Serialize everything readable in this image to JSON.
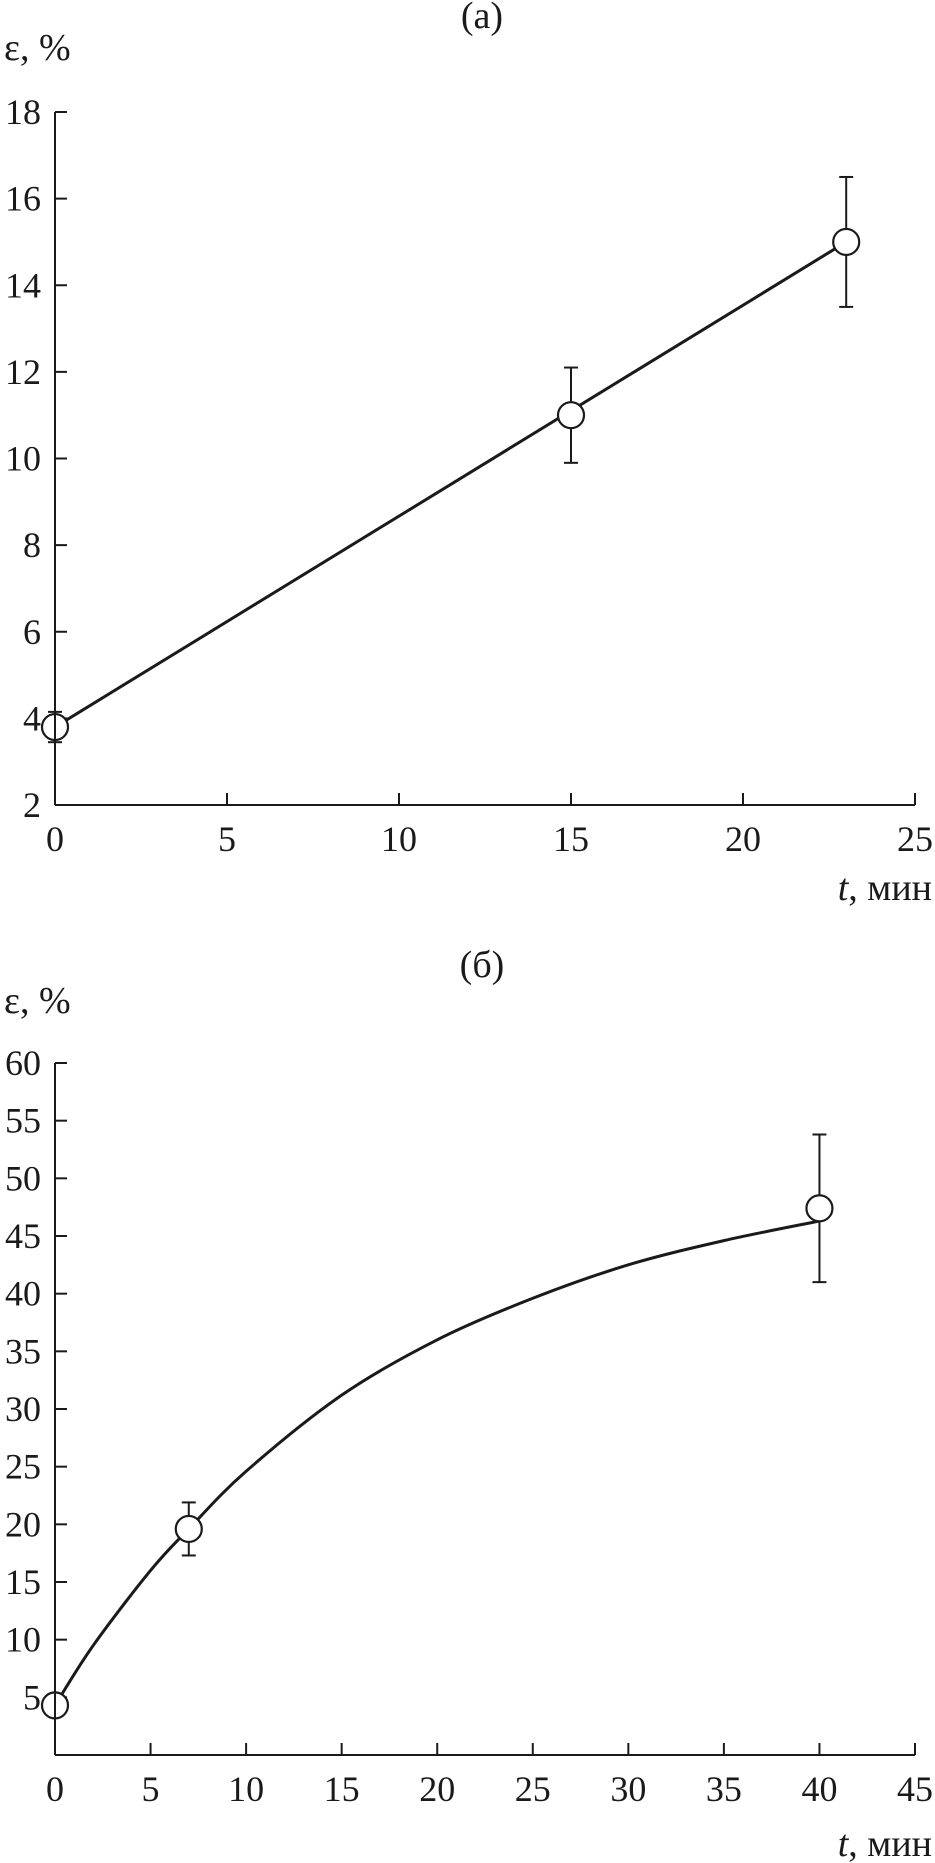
{
  "chart_data": [
    {
      "type": "scatter",
      "panel_label": "(а)",
      "ylabel": "ε, %",
      "xlabel_italic": "t",
      "xlabel_rest": ", мин",
      "xlim": [
        0,
        25
      ],
      "ylim": [
        2,
        18
      ],
      "x_ticks": [
        0,
        5,
        10,
        15,
        20,
        25
      ],
      "y_ticks": [
        2,
        4,
        6,
        8,
        10,
        12,
        14,
        16,
        18
      ],
      "grid": false,
      "series": [
        {
          "x": [
            0,
            15,
            23
          ],
          "y": [
            3.8,
            11.0,
            15.0
          ],
          "err": [
            0.35,
            1.1,
            1.5
          ],
          "marker": "open-circle"
        }
      ],
      "fit": {
        "kind": "linear",
        "x": [
          0,
          23
        ],
        "y": [
          3.8,
          15.0
        ]
      }
    },
    {
      "type": "scatter",
      "panel_label": "(б)",
      "ylabel": "ε, %",
      "xlabel_italic": "t",
      "xlabel_rest": ", мин",
      "xlim": [
        0,
        45
      ],
      "ylim": [
        0,
        60
      ],
      "x_ticks": [
        0,
        5,
        10,
        15,
        20,
        25,
        30,
        35,
        40,
        45
      ],
      "y_ticks": [
        5,
        10,
        15,
        20,
        25,
        30,
        35,
        40,
        45,
        50,
        55,
        60
      ],
      "grid": false,
      "series": [
        {
          "x": [
            0,
            7,
            40
          ],
          "y": [
            4.3,
            19.6,
            47.4
          ],
          "err": [
            0,
            2.3,
            6.4
          ],
          "marker": "open-circle"
        }
      ],
      "fit": {
        "kind": "saturating-curve",
        "x": [
          0,
          2,
          5,
          7,
          10,
          15,
          20,
          25,
          30,
          35,
          40
        ],
        "y": [
          4.3,
          9.5,
          16.0,
          19.6,
          24.6,
          31.2,
          36.0,
          39.6,
          42.5,
          44.6,
          46.3
        ]
      }
    }
  ]
}
